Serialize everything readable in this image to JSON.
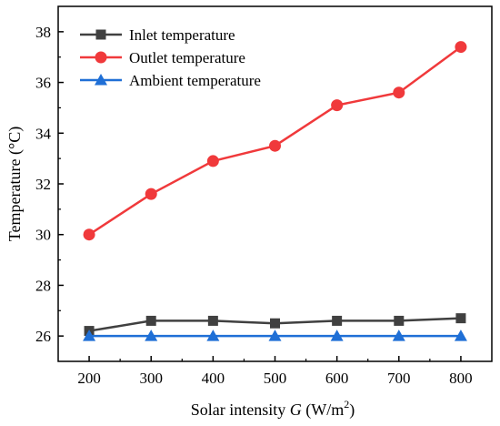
{
  "chart_data": {
    "type": "line",
    "x": [
      200,
      300,
      400,
      500,
      600,
      700,
      800
    ],
    "series": [
      {
        "name": "Inlet temperature",
        "values": [
          26.2,
          26.6,
          26.6,
          26.5,
          26.6,
          26.6,
          26.7
        ],
        "color": "#404040",
        "marker": "square"
      },
      {
        "name": "Outlet temperature",
        "values": [
          30.0,
          31.6,
          32.9,
          33.5,
          35.1,
          35.6,
          37.4
        ],
        "color": "#f0393b",
        "marker": "circle"
      },
      {
        "name": "Ambient temperature",
        "values": [
          26.0,
          26.0,
          26.0,
          26.0,
          26.0,
          26.0,
          26.0
        ],
        "color": "#1f6fd6",
        "marker": "triangle"
      }
    ],
    "xlabel": {
      "prefix": "Solar intensity ",
      "variable": "G",
      "unit_open": " (W/m",
      "unit_exp": "2",
      "unit_close": ")"
    },
    "ylabel": "Temperature (°C)",
    "xlim": [
      150,
      850
    ],
    "ylim": [
      25,
      39
    ],
    "xticks": [
      200,
      300,
      400,
      500,
      600,
      700,
      800
    ],
    "yticks": [
      26,
      28,
      30,
      32,
      34,
      36,
      38
    ],
    "legend_position": "top-left",
    "grid": false
  }
}
